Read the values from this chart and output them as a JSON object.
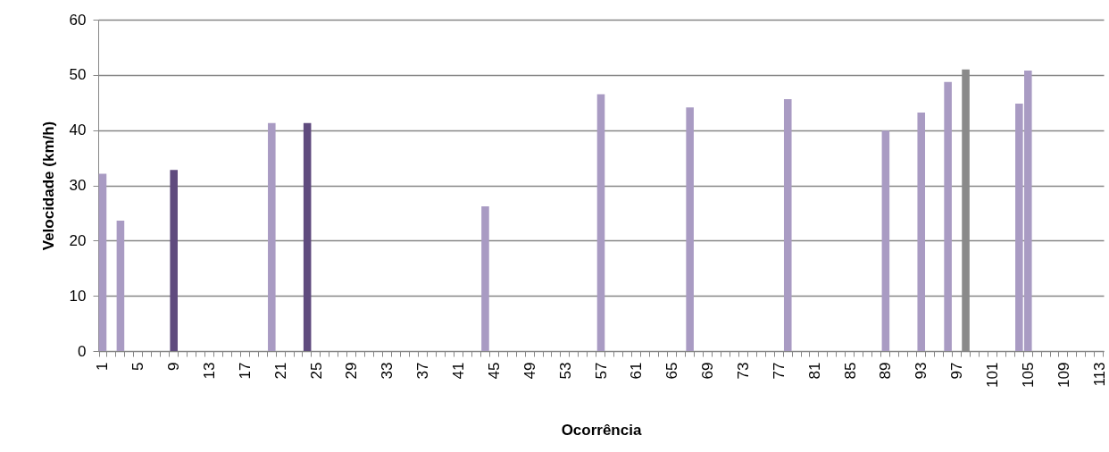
{
  "chart_data": {
    "type": "bar",
    "xlabel": "Ocorrência",
    "ylabel": "Velocidade (km/h)",
    "categories": [
      "1",
      null,
      null,
      null,
      "5",
      null,
      null,
      null,
      "9",
      null,
      null,
      null,
      "13",
      null,
      null,
      null,
      "17",
      null,
      null,
      null,
      "21",
      null,
      null,
      null,
      "25",
      null,
      null,
      null,
      "29",
      null,
      null,
      null,
      "33",
      null,
      null,
      null,
      "37",
      null,
      null,
      null,
      "41",
      null,
      null,
      null,
      "45",
      null,
      null,
      null,
      "49",
      null,
      null,
      null,
      "53",
      null,
      null,
      null,
      "57",
      null,
      null,
      null,
      "61",
      null,
      null,
      null,
      "65",
      null,
      null,
      null,
      "69",
      null,
      null,
      null,
      "73",
      null,
      null,
      null,
      "77",
      null,
      null,
      null,
      "81",
      null,
      null,
      null,
      "85",
      null,
      null,
      null,
      "89",
      null,
      null,
      null,
      "93",
      null,
      null,
      null,
      "97",
      null,
      null,
      null,
      "101",
      null,
      null,
      null,
      "105",
      null,
      null,
      null,
      "109",
      null,
      null,
      null,
      "113"
    ],
    "values": [
      32.1,
      null,
      23.6,
      null,
      null,
      null,
      null,
      null,
      32.8,
      null,
      null,
      null,
      null,
      null,
      null,
      null,
      null,
      null,
      null,
      41.3,
      null,
      null,
      null,
      41.3,
      null,
      null,
      null,
      null,
      null,
      null,
      null,
      null,
      null,
      null,
      null,
      null,
      null,
      null,
      null,
      null,
      null,
      null,
      null,
      26.2,
      null,
      null,
      null,
      null,
      null,
      null,
      null,
      null,
      null,
      null,
      null,
      null,
      46.5,
      null,
      null,
      null,
      null,
      null,
      null,
      null,
      null,
      null,
      44.1,
      null,
      null,
      null,
      null,
      null,
      null,
      null,
      null,
      null,
      null,
      45.6,
      null,
      null,
      null,
      null,
      null,
      null,
      null,
      null,
      null,
      null,
      39.9,
      null,
      null,
      null,
      43.2,
      null,
      null,
      48.7,
      null,
      51.0,
      null,
      null,
      null,
      null,
      null,
      44.8,
      50.8,
      null,
      null,
      null,
      null,
      null,
      null,
      null,
      null
    ],
    "colors": [
      "#a99bc3",
      null,
      "#a99bc3",
      null,
      null,
      null,
      null,
      null,
      "#5f4b7e",
      null,
      null,
      null,
      null,
      null,
      null,
      null,
      null,
      null,
      null,
      "#a99bc3",
      null,
      null,
      null,
      "#5f4b7e",
      null,
      null,
      null,
      null,
      null,
      null,
      null,
      null,
      null,
      null,
      null,
      null,
      null,
      null,
      null,
      null,
      null,
      null,
      null,
      "#a99bc3",
      null,
      null,
      null,
      null,
      null,
      null,
      null,
      null,
      null,
      null,
      null,
      null,
      "#a99bc3",
      null,
      null,
      null,
      null,
      null,
      null,
      null,
      null,
      null,
      "#a99bc3",
      null,
      null,
      null,
      null,
      null,
      null,
      null,
      null,
      null,
      null,
      "#a99bc3",
      null,
      null,
      null,
      null,
      null,
      null,
      null,
      null,
      null,
      null,
      "#a99bc3",
      null,
      null,
      null,
      "#a99bc3",
      null,
      null,
      "#a99bc3",
      null,
      "#8a8a8a",
      null,
      null,
      null,
      null,
      null,
      "#a99bc3",
      "#a99bc3",
      null,
      null,
      null,
      null,
      null,
      null,
      null,
      null
    ],
    "ylim": [
      0,
      60
    ],
    "yticks": [
      0,
      10,
      20,
      30,
      40,
      50,
      60
    ],
    "grid": "y"
  }
}
